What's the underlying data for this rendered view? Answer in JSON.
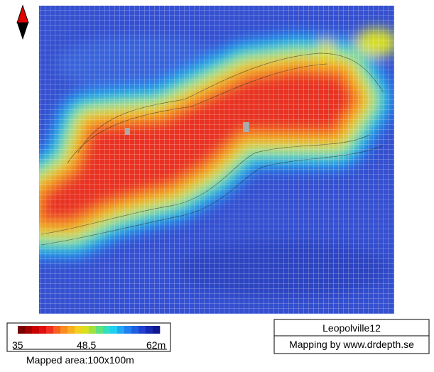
{
  "scale": {
    "colors": [
      "#7a0000",
      "#a00000",
      "#c80000",
      "#e01010",
      "#f03020",
      "#f86020",
      "#fb8c20",
      "#f8b020",
      "#f0d020",
      "#d8e020",
      "#a0e040",
      "#60e080",
      "#30e0c0",
      "#20d0f0",
      "#20a8f0",
      "#2080f0",
      "#2060e0",
      "#2040d0",
      "#1828b0",
      "#101890"
    ],
    "min_label": "35",
    "mid_label": "48.5",
    "max_label": "62m",
    "area": "Mapped area:100x100m"
  },
  "info": {
    "name": "Leopolville12",
    "credit": "Mapping by www.drdepth.se"
  }
}
